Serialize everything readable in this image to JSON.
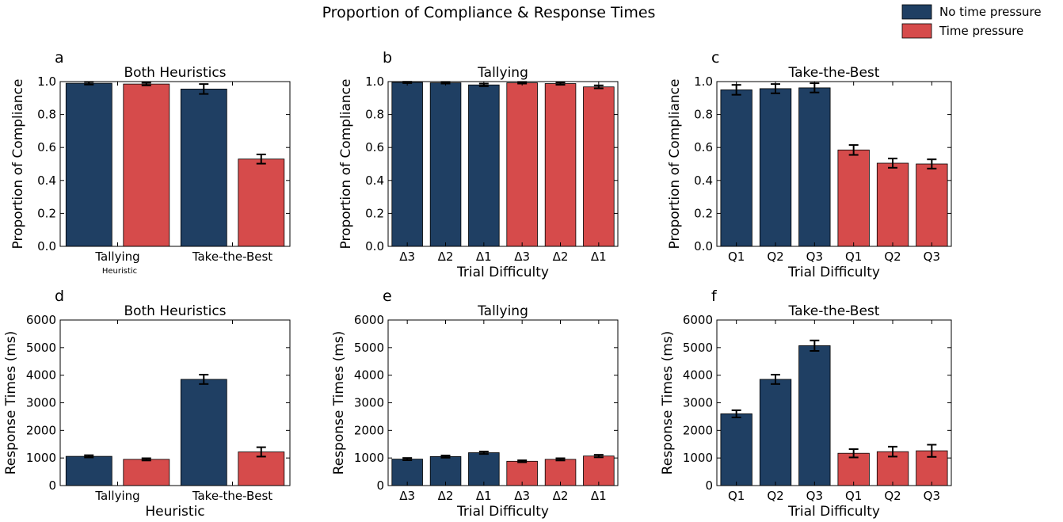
{
  "title": "Proportion of Compliance & Response Times",
  "colors": {
    "no_pressure": "#1f3f63",
    "pressure": "#d64b4b"
  },
  "legend": [
    {
      "label": "No time pressure",
      "color": "#1f3f63"
    },
    {
      "label": "Time pressure",
      "color": "#d64b4b"
    }
  ],
  "chart_data": [
    {
      "panel": "a",
      "type": "bar",
      "title": "Both Heuristics",
      "ylabel": "Proportion of Compliance",
      "xlabel": "Heuristic",
      "xlabel_style": "small",
      "ylim": [
        0,
        1.0
      ],
      "yticks": [
        "0.0",
        "0.2",
        "0.4",
        "0.6",
        "0.8",
        "1.0"
      ],
      "group_labels": [
        "Tallying",
        "Take-the-Best"
      ],
      "bars": [
        {
          "value": 0.99,
          "err": 0.008,
          "series": "No time pressure"
        },
        {
          "value": 0.985,
          "err": 0.008,
          "series": "Time pressure"
        },
        {
          "value": 0.955,
          "err": 0.03,
          "series": "No time pressure"
        },
        {
          "value": 0.53,
          "err": 0.028,
          "series": "Time pressure"
        }
      ]
    },
    {
      "panel": "b",
      "type": "bar",
      "title": "Tallying",
      "ylabel": "Proportion of Compliance",
      "xlabel": "Trial Difficulty",
      "xlabel_style": "normal",
      "ylim": [
        0,
        1.0
      ],
      "yticks": [
        "0.0",
        "0.2",
        "0.4",
        "0.6",
        "0.8",
        "1.0"
      ],
      "categories": [
        "Δ3",
        "Δ2",
        "Δ1",
        "Δ3",
        "Δ2",
        "Δ1"
      ],
      "bars": [
        {
          "value": 0.995,
          "err": 0.004,
          "series": "No time pressure"
        },
        {
          "value": 0.993,
          "err": 0.005,
          "series": "No time pressure"
        },
        {
          "value": 0.98,
          "err": 0.008,
          "series": "No time pressure"
        },
        {
          "value": 0.993,
          "err": 0.005,
          "series": "Time pressure"
        },
        {
          "value": 0.988,
          "err": 0.007,
          "series": "Time pressure"
        },
        {
          "value": 0.968,
          "err": 0.009,
          "series": "Time pressure"
        }
      ]
    },
    {
      "panel": "c",
      "type": "bar",
      "title": "Take-the-Best",
      "ylabel": "Proportion of Compliance",
      "xlabel": "Trial Difficulty",
      "xlabel_style": "normal",
      "ylim": [
        0,
        1.0
      ],
      "yticks": [
        "0.0",
        "0.2",
        "0.4",
        "0.6",
        "0.8",
        "1.0"
      ],
      "categories": [
        "Q1",
        "Q2",
        "Q3",
        "Q1",
        "Q2",
        "Q3"
      ],
      "bars": [
        {
          "value": 0.95,
          "err": 0.03,
          "series": "No time pressure"
        },
        {
          "value": 0.957,
          "err": 0.028,
          "series": "No time pressure"
        },
        {
          "value": 0.962,
          "err": 0.028,
          "series": "No time pressure"
        },
        {
          "value": 0.585,
          "err": 0.03,
          "series": "Time pressure"
        },
        {
          "value": 0.505,
          "err": 0.028,
          "series": "Time pressure"
        },
        {
          "value": 0.5,
          "err": 0.028,
          "series": "Time pressure"
        }
      ]
    },
    {
      "panel": "d",
      "type": "bar",
      "title": "Both Heuristics",
      "ylabel": "Response Times (ms)",
      "xlabel": "Heuristic",
      "xlabel_style": "normal",
      "ylim": [
        0,
        6000
      ],
      "yticks": [
        "0",
        "1000",
        "2000",
        "3000",
        "4000",
        "5000",
        "6000"
      ],
      "group_labels": [
        "Tallying",
        "Take-the-Best"
      ],
      "bars": [
        {
          "value": 1060,
          "err": 40,
          "series": "No time pressure"
        },
        {
          "value": 950,
          "err": 40,
          "series": "Time pressure"
        },
        {
          "value": 3850,
          "err": 170,
          "series": "No time pressure"
        },
        {
          "value": 1220,
          "err": 170,
          "series": "Time pressure"
        }
      ]
    },
    {
      "panel": "e",
      "type": "bar",
      "title": "Tallying",
      "ylabel": "Response Times (ms)",
      "xlabel": "Trial Difficulty",
      "xlabel_style": "normal",
      "ylim": [
        0,
        6000
      ],
      "yticks": [
        "0",
        "1000",
        "2000",
        "3000",
        "4000",
        "5000",
        "6000"
      ],
      "categories": [
        "Δ3",
        "Δ2",
        "Δ1",
        "Δ3",
        "Δ2",
        "Δ1"
      ],
      "bars": [
        {
          "value": 960,
          "err": 40,
          "series": "No time pressure"
        },
        {
          "value": 1050,
          "err": 40,
          "series": "No time pressure"
        },
        {
          "value": 1190,
          "err": 45,
          "series": "No time pressure"
        },
        {
          "value": 880,
          "err": 35,
          "series": "Time pressure"
        },
        {
          "value": 950,
          "err": 40,
          "series": "Time pressure"
        },
        {
          "value": 1070,
          "err": 45,
          "series": "Time pressure"
        }
      ]
    },
    {
      "panel": "f",
      "type": "bar",
      "title": "Take-the-Best",
      "ylabel": "Response Times (ms)",
      "xlabel": "Trial Difficulty",
      "xlabel_style": "normal",
      "ylim": [
        0,
        6000
      ],
      "yticks": [
        "0",
        "1000",
        "2000",
        "3000",
        "4000",
        "5000",
        "6000"
      ],
      "categories": [
        "Q1",
        "Q2",
        "Q3",
        "Q1",
        "Q2",
        "Q3"
      ],
      "bars": [
        {
          "value": 2600,
          "err": 130,
          "series": "No time pressure"
        },
        {
          "value": 3850,
          "err": 170,
          "series": "No time pressure"
        },
        {
          "value": 5070,
          "err": 190,
          "series": "No time pressure"
        },
        {
          "value": 1170,
          "err": 150,
          "series": "Time pressure"
        },
        {
          "value": 1230,
          "err": 180,
          "series": "Time pressure"
        },
        {
          "value": 1260,
          "err": 220,
          "series": "Time pressure"
        }
      ]
    }
  ]
}
